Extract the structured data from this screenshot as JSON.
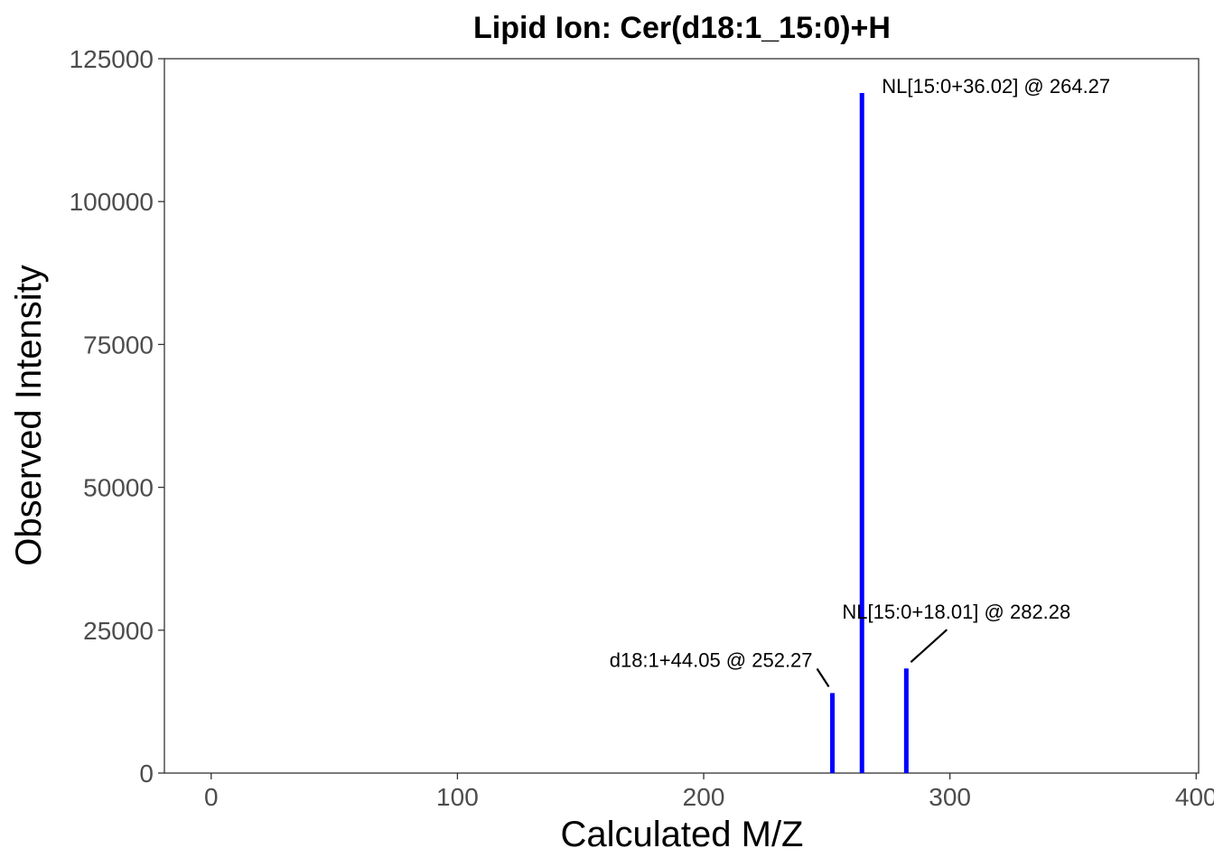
{
  "chart_data": {
    "type": "bar",
    "title": "Lipid Ion: Cer(d18:1_15:0)+H",
    "xlabel": "Calculated M/Z",
    "ylabel": "Observed Intensity",
    "xlim": [
      -19,
      401
    ],
    "ylim": [
      0,
      125000
    ],
    "x_ticks": [
      0,
      100,
      200,
      300,
      400
    ],
    "x_tick_labels": [
      "0",
      "100",
      "200",
      "300",
      "400"
    ],
    "y_ticks": [
      0,
      25000,
      50000,
      75000,
      100000,
      125000
    ],
    "y_tick_labels": [
      "0",
      "25000",
      "50000",
      "75000",
      "100000",
      "125000"
    ],
    "grid": false,
    "bar_color": "#0000ff",
    "series": [
      {
        "x": [
          252.27,
          264.27,
          282.28
        ],
        "y": [
          14000,
          119000,
          18300
        ]
      }
    ],
    "annotations": [
      {
        "text": "d18:1+44.05 @ 252.27",
        "x": 252.27,
        "y": 14000
      },
      {
        "text": "NL[15:0+36.02] @ 264.27",
        "x": 264.27,
        "y": 119000
      },
      {
        "text": "NL[15:0+18.01] @ 282.28",
        "x": 282.28,
        "y": 18300
      }
    ]
  }
}
